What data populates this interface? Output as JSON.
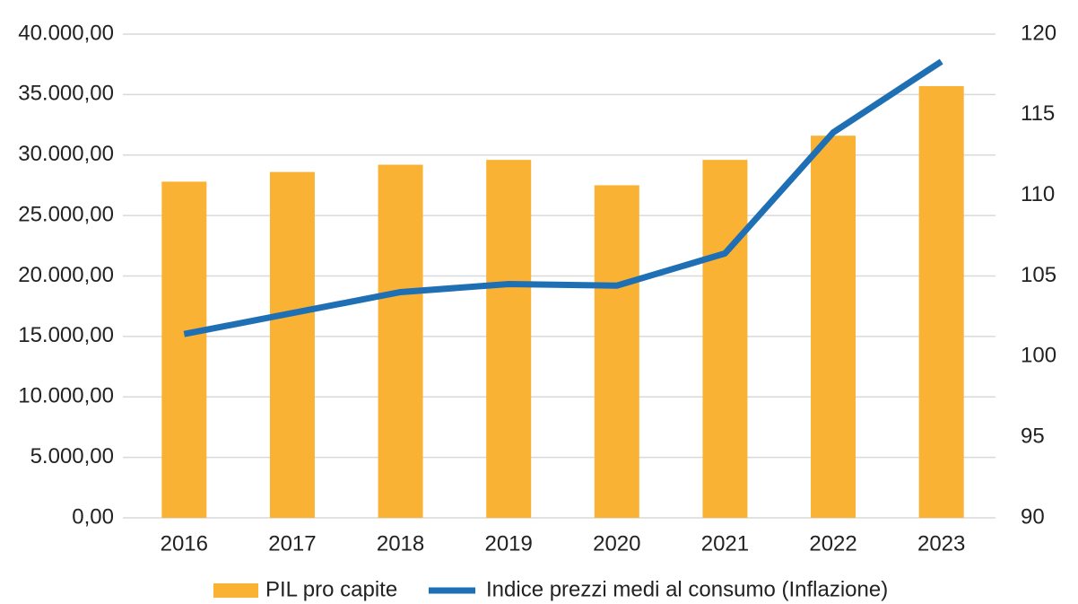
{
  "chart_data": {
    "type": "bar-line",
    "categories": [
      "2016",
      "2017",
      "2018",
      "2019",
      "2020",
      "2021",
      "2022",
      "2023"
    ],
    "series": [
      {
        "name": "PIL pro capite",
        "color": "#f9b233",
        "type": "bar",
        "values": [
          27800,
          28600,
          29200,
          29600,
          27500,
          29600,
          31600,
          35700
        ]
      },
      {
        "name": "Indice prezzi medi al consumo (Inflazione)",
        "color": "#1f6fb5",
        "type": "line",
        "axis": "y2",
        "values": [
          101.4,
          102.7,
          104.0,
          104.5,
          104.4,
          106.4,
          113.9,
          118.3
        ]
      }
    ],
    "ylim": [
      0,
      40000
    ],
    "yticks": [
      {
        "value": 0,
        "label": "0,00"
      },
      {
        "value": 5000,
        "label": "5.000,00"
      },
      {
        "value": 10000,
        "label": "10.000,00"
      },
      {
        "value": 15000,
        "label": "15.000,00"
      },
      {
        "value": 20000,
        "label": "20.000,00"
      },
      {
        "value": 25000,
        "label": "25.000,00"
      },
      {
        "value": 30000,
        "label": "30.000,00"
      },
      {
        "value": 35000,
        "label": "35.000,00"
      },
      {
        "value": 40000,
        "label": "40.000,00"
      }
    ],
    "y2lim": [
      90,
      120
    ],
    "y2ticks": [
      90,
      95,
      100,
      105,
      110,
      115,
      120
    ],
    "grid": true,
    "legend": "bottom"
  }
}
